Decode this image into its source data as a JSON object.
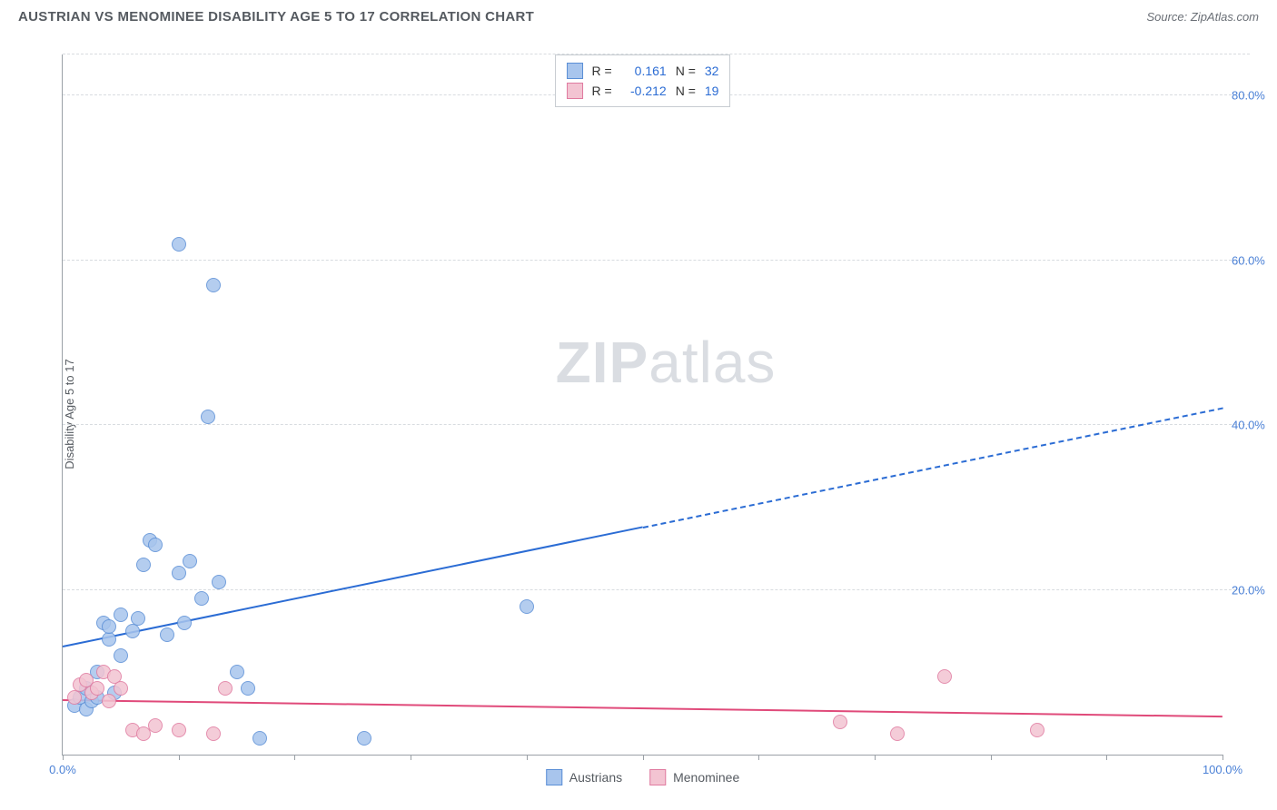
{
  "header": {
    "title": "AUSTRIAN VS MENOMINEE DISABILITY AGE 5 TO 17 CORRELATION CHART",
    "source": "Source: ZipAtlas.com"
  },
  "chart": {
    "type": "scatter",
    "ylabel": "Disability Age 5 to 17",
    "watermark": "ZIPatlas",
    "background_color": "#ffffff",
    "grid_color": "#d8dce0",
    "axis_color": "#9aa0a6",
    "tick_color": "#4a80d6",
    "xlim": [
      0,
      100
    ],
    "ylim": [
      0,
      85
    ],
    "yticks": [
      20,
      40,
      60,
      80
    ],
    "ytick_labels": [
      "20.0%",
      "40.0%",
      "60.0%",
      "80.0%"
    ],
    "xticks": [
      0,
      10,
      20,
      30,
      40,
      50,
      60,
      70,
      80,
      90,
      100
    ],
    "xtick_labels_shown": {
      "0": "0.0%",
      "100": "100.0%"
    },
    "marker_radius": 8,
    "marker_border_width": 1,
    "series": [
      {
        "name": "Austrians",
        "fill_color": "#a8c5ed",
        "stroke_color": "#5b8fd6",
        "line_color": "#2b6cd4",
        "r_value": "0.161",
        "n_value": "32",
        "points": [
          [
            1,
            6
          ],
          [
            1.5,
            7
          ],
          [
            2,
            5.5
          ],
          [
            2,
            8
          ],
          [
            2.5,
            6.5
          ],
          [
            3,
            10
          ],
          [
            3,
            7
          ],
          [
            3.5,
            16
          ],
          [
            4,
            14
          ],
          [
            4,
            15.5
          ],
          [
            4.5,
            7.5
          ],
          [
            5,
            17
          ],
          [
            5,
            12
          ],
          [
            6,
            15
          ],
          [
            6.5,
            16.5
          ],
          [
            7,
            23
          ],
          [
            7.5,
            26
          ],
          [
            8,
            25.5
          ],
          [
            9,
            14.5
          ],
          [
            10,
            22
          ],
          [
            10.5,
            16
          ],
          [
            11,
            23.5
          ],
          [
            12,
            19
          ],
          [
            12.5,
            41
          ],
          [
            13,
            57
          ],
          [
            13.5,
            21
          ],
          [
            15,
            10
          ],
          [
            16,
            8
          ],
          [
            17,
            2
          ],
          [
            26,
            2
          ],
          [
            40,
            18
          ],
          [
            10,
            62
          ]
        ],
        "trend": {
          "y_at_x0": 13,
          "y_at_x100": 42,
          "dash_from_x": 50
        }
      },
      {
        "name": "Menominee",
        "fill_color": "#f3c4d2",
        "stroke_color": "#e07ba0",
        "line_color": "#e04a7a",
        "r_value": "-0.212",
        "n_value": "19",
        "points": [
          [
            1,
            7
          ],
          [
            1.5,
            8.5
          ],
          [
            2,
            9
          ],
          [
            2.5,
            7.5
          ],
          [
            3,
            8
          ],
          [
            3.5,
            10
          ],
          [
            4,
            6.5
          ],
          [
            4.5,
            9.5
          ],
          [
            5,
            8
          ],
          [
            6,
            3
          ],
          [
            7,
            2.5
          ],
          [
            8,
            3.5
          ],
          [
            10,
            3
          ],
          [
            13,
            2.5
          ],
          [
            14,
            8
          ],
          [
            67,
            4
          ],
          [
            72,
            2.5
          ],
          [
            76,
            9.5
          ],
          [
            84,
            3
          ]
        ],
        "trend": {
          "y_at_x0": 6.5,
          "y_at_x100": 4.5,
          "dash_from_x": 100
        }
      }
    ],
    "legend_bottom": [
      {
        "label": "Austrians",
        "fill": "#a8c5ed",
        "stroke": "#5b8fd6"
      },
      {
        "label": "Menominee",
        "fill": "#f3c4d2",
        "stroke": "#e07ba0"
      }
    ]
  }
}
